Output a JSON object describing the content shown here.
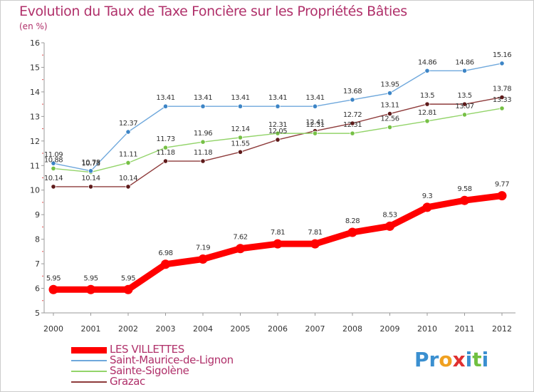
{
  "title": "Evolution du Taux de Taxe Foncière sur les Propriétés Bâties",
  "subtitle": "(en %)",
  "logo": {
    "text": "Proxiti",
    "letter_colors": [
      "#3a8fd0",
      "#3a8fd0",
      "#f0a020",
      "#e03030",
      "#3a8fd0",
      "#70c040",
      "#3a8fd0"
    ]
  },
  "colors": {
    "axis": "#999999",
    "grid": "#e6e6e6",
    "tick_label": "#333333",
    "value_label": "#333333",
    "marker_stroke": "#ffffff"
  },
  "chart_data": {
    "type": "line",
    "x": [
      "2000",
      "2001",
      "2002",
      "2003",
      "2004",
      "2005",
      "2006",
      "2007",
      "2008",
      "2009",
      "2010",
      "2011",
      "2012"
    ],
    "ylim": [
      5,
      16
    ],
    "yticks": [
      "5",
      "6",
      "7",
      "8",
      "9",
      "10",
      "11",
      "12",
      "13",
      "14",
      "15",
      "16"
    ],
    "grid": false,
    "legend_position": "bottom-left",
    "series": [
      {
        "name": "LES VILLETTES",
        "color": "#ff0000",
        "values": [
          5.95,
          5.95,
          5.95,
          6.98,
          7.19,
          7.62,
          7.81,
          7.81,
          8.28,
          8.53,
          9.3,
          9.58,
          9.77
        ],
        "labels": [
          "5.95",
          "5.95",
          "5.95",
          "6.98",
          "7.19",
          "7.62",
          "7.81",
          "7.81",
          "8.28",
          "8.53",
          "9.3",
          "9.58",
          "9.77"
        ]
      },
      {
        "name": "Saint-Maurice-de-Lignon",
        "color": "#6fa8dc",
        "marker": "#3d85c6",
        "values": [
          11.09,
          10.78,
          12.37,
          13.41,
          13.41,
          13.41,
          13.41,
          13.41,
          13.68,
          13.95,
          14.86,
          14.86,
          15.16
        ],
        "labels": [
          "11.09",
          "10.78",
          "12.37",
          "13.41",
          "13.41",
          "13.41",
          "13.41",
          "13.41",
          "13.68",
          "13.95",
          "14.86",
          "14.86",
          "15.16"
        ]
      },
      {
        "name": "Sainte-Sigolène",
        "color": "#93d46a",
        "marker": "#76c045",
        "values": [
          10.88,
          10.73,
          11.11,
          11.73,
          11.96,
          12.14,
          12.31,
          12.31,
          12.31,
          12.56,
          12.81,
          13.07,
          13.33
        ],
        "labels": [
          "10.88",
          "10.73",
          "11.11",
          "11.73",
          "11.96",
          "12.14",
          "12.31",
          "12.31",
          "12.31",
          "12.56",
          "12.81",
          "13.07",
          "13.33"
        ]
      },
      {
        "name": "Grazac",
        "color": "#8e3b3b",
        "marker": "#5e1a1a",
        "values": [
          10.14,
          10.14,
          10.14,
          11.18,
          11.18,
          11.55,
          12.05,
          12.41,
          12.72,
          13.11,
          13.5,
          13.5,
          13.78
        ],
        "labels": [
          "10.14",
          "10.14",
          "10.14",
          "11.18",
          "11.18",
          "11.55",
          "12.05",
          "12.41",
          "12.72",
          "13.11",
          "13.5",
          "13.5",
          "13.78"
        ]
      }
    ]
  }
}
